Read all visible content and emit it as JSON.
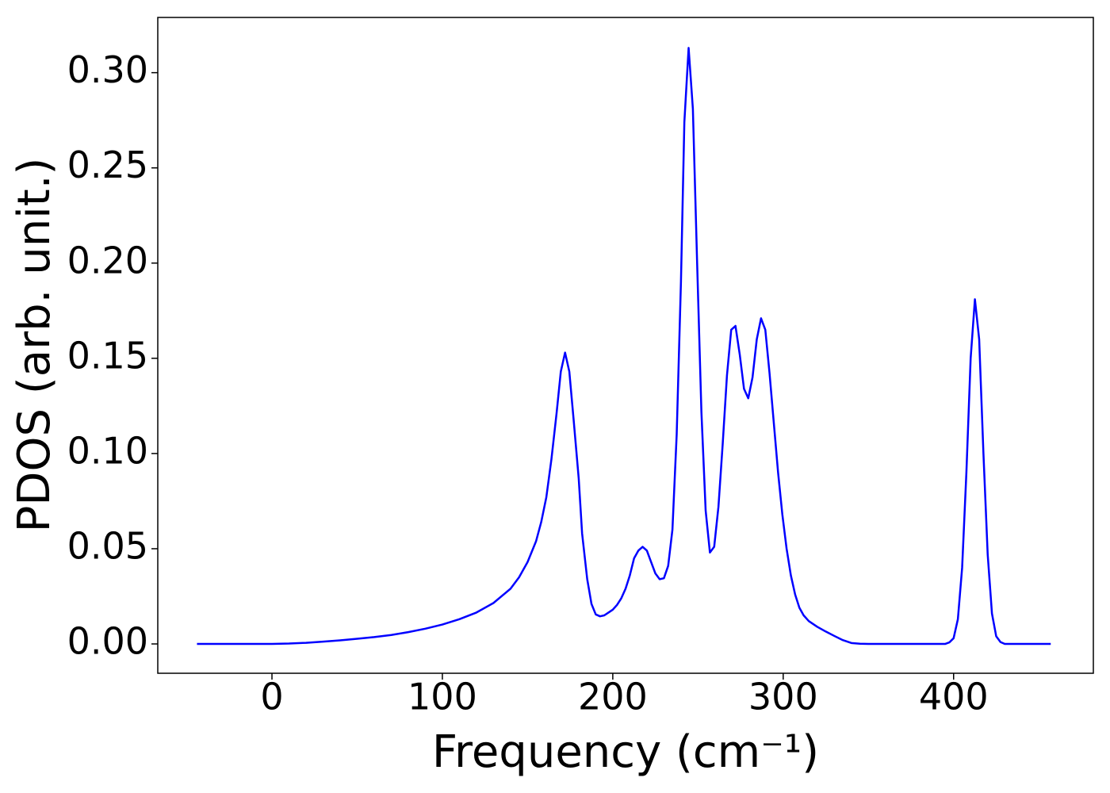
{
  "chart_data": {
    "type": "line",
    "xlabel": "Frequency (cm⁻¹)",
    "ylabel": "PDOS (arb. unit.)",
    "xlim": [
      -67,
      482
    ],
    "ylim": [
      -0.0154,
      0.329
    ],
    "xticks": [
      0,
      100,
      200,
      300,
      400
    ],
    "yticks": [
      {
        "value": 0,
        "label": "0.00"
      },
      {
        "value": 0.05,
        "label": "0.05"
      },
      {
        "value": 0.1,
        "label": "0.10"
      },
      {
        "value": 0.15,
        "label": "0.15"
      },
      {
        "value": 0.2,
        "label": "0.20"
      },
      {
        "value": 0.25,
        "label": "0.25"
      },
      {
        "value": 0.3,
        "label": "0.30"
      }
    ],
    "grid": false,
    "x": [
      -44,
      0,
      10,
      20,
      30,
      40,
      50,
      60,
      70,
      80,
      90,
      100,
      110,
      120,
      130,
      140,
      145,
      150,
      155,
      158,
      161,
      164,
      167,
      169.5,
      172,
      174.5,
      177,
      180,
      182,
      185,
      187.5,
      190,
      192.5,
      195,
      197.5,
      200,
      202.5,
      205,
      207.5,
      210,
      212.5,
      215,
      217.5,
      220,
      222.5,
      225,
      227.5,
      230,
      232.5,
      235,
      237.5,
      240,
      242,
      244.5,
      247,
      249.5,
      252,
      254.5,
      257,
      259.5,
      262,
      264.5,
      267,
      269.5,
      272,
      274.5,
      277,
      279.5,
      282,
      284.5,
      287,
      289.5,
      292,
      294.5,
      297,
      299.5,
      302,
      304.5,
      307,
      309.5,
      312,
      315,
      320,
      325,
      330,
      335,
      340,
      345,
      350,
      395,
      397.5,
      400,
      402.5,
      405,
      407.5,
      410,
      412.5,
      415,
      417.5,
      420,
      422.5,
      425,
      427.5,
      430,
      457
    ],
    "series": [
      {
        "name": "PDOS",
        "color": "#0000ff",
        "values": [
          0,
          0,
          0.0002,
          0.0006,
          0.0012,
          0.0019,
          0.0027,
          0.0036,
          0.0047,
          0.0062,
          0.008,
          0.0102,
          0.013,
          0.0165,
          0.0215,
          0.029,
          0.035,
          0.043,
          0.054,
          0.064,
          0.077,
          0.097,
          0.121,
          0.143,
          0.153,
          0.143,
          0.118,
          0.087,
          0.058,
          0.034,
          0.021,
          0.0155,
          0.0145,
          0.015,
          0.0165,
          0.018,
          0.0205,
          0.024,
          0.029,
          0.036,
          0.045,
          0.049,
          0.051,
          0.049,
          0.043,
          0.037,
          0.034,
          0.0345,
          0.041,
          0.06,
          0.11,
          0.19,
          0.274,
          0.313,
          0.281,
          0.2,
          0.122,
          0.07,
          0.048,
          0.051,
          0.072,
          0.105,
          0.141,
          0.165,
          0.167,
          0.152,
          0.134,
          0.129,
          0.14,
          0.16,
          0.171,
          0.165,
          0.142,
          0.116,
          0.09,
          0.068,
          0.05,
          0.036,
          0.026,
          0.019,
          0.015,
          0.012,
          0.009,
          0.0065,
          0.0042,
          0.002,
          0.0005,
          0.0001,
          0,
          0,
          0.0008,
          0.003,
          0.013,
          0.04,
          0.09,
          0.15,
          0.181,
          0.16,
          0.1,
          0.047,
          0.016,
          0.004,
          0.001,
          0,
          0
        ]
      }
    ]
  }
}
